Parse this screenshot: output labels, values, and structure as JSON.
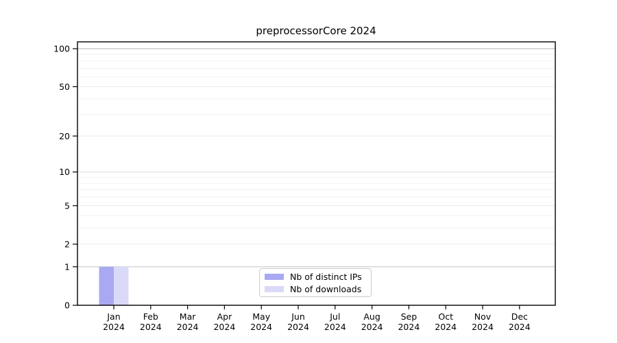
{
  "chart_data": {
    "type": "bar",
    "title": "preprocessorCore 2024",
    "year_label": "2024",
    "categories": [
      "Jan",
      "Feb",
      "Mar",
      "Apr",
      "May",
      "Jun",
      "Jul",
      "Aug",
      "Sep",
      "Oct",
      "Nov",
      "Dec"
    ],
    "series": [
      {
        "name": "Nb of distinct IPs",
        "color": "#a9a9f2",
        "values": [
          1,
          0,
          0,
          0,
          0,
          0,
          0,
          0,
          0,
          0,
          0,
          0
        ]
      },
      {
        "name": "Nb of downloads",
        "color": "#dadaf8",
        "values": [
          1,
          0,
          0,
          0,
          0,
          0,
          0,
          0,
          0,
          0,
          0,
          0
        ]
      }
    ],
    "y_axis": {
      "scale": "log10(1+v)",
      "major_ticks": [
        0,
        1,
        2,
        5,
        10,
        20,
        50,
        100
      ],
      "minor_gridlines": [
        3,
        4,
        6,
        7,
        8,
        9,
        30,
        40,
        60,
        70,
        80,
        90
      ],
      "ylim": [
        0,
        115
      ]
    },
    "x_axis": {
      "tick_label_line2_is_year": true
    },
    "legend": {
      "position": "bottom-center"
    },
    "grid": "horizontal"
  }
}
